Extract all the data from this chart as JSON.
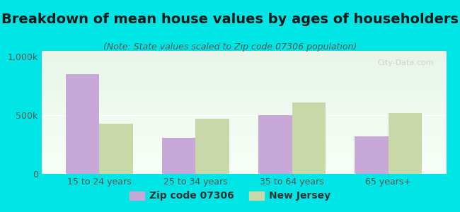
{
  "title": "Breakdown of mean house values by ages of householders",
  "subtitle": "(Note: State values scaled to Zip code 07306 population)",
  "categories": [
    "15 to 24 years",
    "25 to 34 years",
    "35 to 64 years",
    "65 years+"
  ],
  "zip_values": [
    850000,
    310000,
    500000,
    320000
  ],
  "nj_values": [
    430000,
    470000,
    610000,
    520000
  ],
  "zip_color": "#c8a8d8",
  "nj_color": "#c8d8a8",
  "background_color": "#00e5e5",
  "plot_bg_color_top": "#e8f5e8",
  "plot_bg_color_bottom": "#f8fff8",
  "ylim": [
    0,
    1050000
  ],
  "ytick_labels": [
    "0",
    "500k",
    "1,000k"
  ],
  "legend_zip_label": "Zip code 07306",
  "legend_nj_label": "New Jersey",
  "watermark": "City-Data.com",
  "bar_width": 0.35,
  "title_fontsize": 14,
  "subtitle_fontsize": 9,
  "tick_fontsize": 9,
  "legend_fontsize": 10
}
